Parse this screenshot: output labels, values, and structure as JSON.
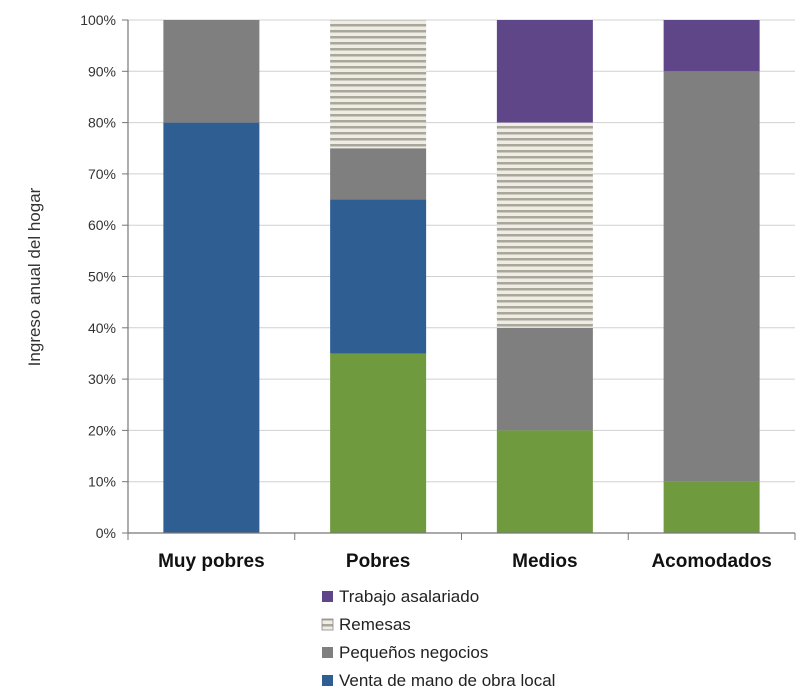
{
  "chart_data": {
    "type": "bar",
    "stacked": true,
    "categories": [
      "Muy pobres",
      "Pobres",
      "Medios",
      "Acomodados"
    ],
    "ylabel": "Ingreso anual del hogar",
    "ylim": [
      0,
      100
    ],
    "yticks": [
      "0%",
      "10%",
      "20%",
      "30%",
      "40%",
      "50%",
      "60%",
      "70%",
      "80%",
      "90%",
      "100%"
    ],
    "grid": true,
    "legend_position": "bottom",
    "series": [
      {
        "name": "Venta de mano de obra local",
        "color": "#2f5f92",
        "values": [
          80,
          30,
          0,
          0
        ]
      },
      {
        "name": "Pequeños negocios",
        "color": "#7f7f7f",
        "values": [
          20,
          10,
          20,
          80
        ]
      },
      {
        "name": "Remesas",
        "color": "#c9c6bd",
        "pattern": "horizontal-stripes",
        "values": [
          0,
          25,
          40,
          0
        ]
      },
      {
        "name": "Trabajo asalariado",
        "color": "#5e4688",
        "values": [
          0,
          0,
          20,
          10
        ]
      }
    ],
    "base_series": {
      "name": "",
      "color": "#6f9a3e",
      "values": [
        0,
        35,
        20,
        10
      ]
    },
    "legend": [
      "Trabajo asalariado",
      "Remesas",
      "Pequeños negocios",
      "Venta de mano de obra local"
    ]
  }
}
